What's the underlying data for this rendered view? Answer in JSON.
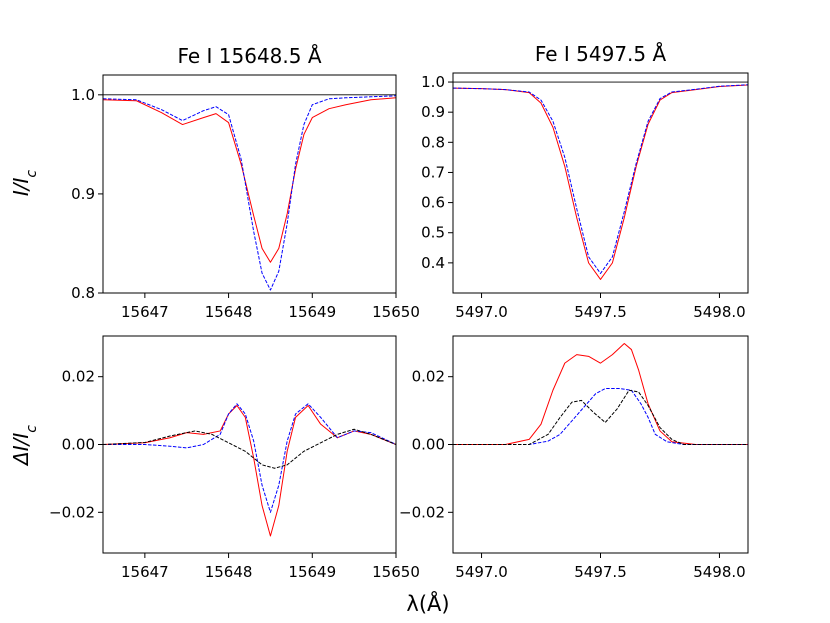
{
  "figure": {
    "ylabel_top": "I/I",
    "ylabel_top_sub": "c",
    "ylabel_bottom": "ΔI/I",
    "ylabel_bottom_sub": "c",
    "xlabel": "λ(Å)"
  },
  "chart_data": [
    {
      "id": "top-left",
      "type": "line",
      "title": "Fe I 15648.5 Å",
      "xlim": [
        15646.5,
        15650.0
      ],
      "ylim": [
        0.8,
        1.02
      ],
      "xticks": [
        15647,
        15648,
        15649,
        15650
      ],
      "xtick_labels": [
        "15647",
        "15648",
        "15649",
        "15650"
      ],
      "yticks": [
        0.8,
        0.9,
        1.0
      ],
      "ytick_labels": [
        "0.8",
        "0.9",
        "1.0"
      ],
      "hline": 1.0,
      "series": [
        {
          "color": "#ff0000",
          "dash": "solid",
          "x": [
            15646.5,
            15646.9,
            15647.2,
            15647.45,
            15647.7,
            15647.85,
            15648.0,
            15648.15,
            15648.3,
            15648.4,
            15648.5,
            15648.6,
            15648.7,
            15648.8,
            15648.9,
            15649.0,
            15649.2,
            15649.4,
            15649.7,
            15650.0
          ],
          "y": [
            0.995,
            0.994,
            0.982,
            0.97,
            0.977,
            0.981,
            0.972,
            0.93,
            0.878,
            0.845,
            0.831,
            0.845,
            0.88,
            0.925,
            0.96,
            0.977,
            0.986,
            0.99,
            0.995,
            0.997
          ]
        },
        {
          "color": "#0000ff",
          "dash": "dashed",
          "x": [
            15646.5,
            15646.9,
            15647.2,
            15647.45,
            15647.7,
            15647.85,
            15648.0,
            15648.15,
            15648.3,
            15648.4,
            15648.5,
            15648.6,
            15648.7,
            15648.8,
            15648.9,
            15649.0,
            15649.2,
            15649.4,
            15649.7,
            15650.0
          ],
          "y": [
            0.996,
            0.995,
            0.985,
            0.974,
            0.984,
            0.988,
            0.98,
            0.935,
            0.862,
            0.82,
            0.803,
            0.822,
            0.87,
            0.93,
            0.97,
            0.99,
            0.996,
            0.997,
            0.998,
            0.999
          ]
        }
      ]
    },
    {
      "id": "top-right",
      "type": "line",
      "title": "Fe I 5497.5 Å",
      "xlim": [
        5496.88,
        5498.12
      ],
      "ylim": [
        0.3,
        1.03
      ],
      "xticks": [
        5497.0,
        5497.5,
        5498.0
      ],
      "xtick_labels": [
        "5497.0",
        "5497.5",
        "5498.0"
      ],
      "yticks": [
        0.4,
        0.5,
        0.6,
        0.7,
        0.8,
        0.9,
        1.0
      ],
      "ytick_labels": [
        "0.4",
        "0.5",
        "0.6",
        "0.7",
        "0.8",
        "0.9",
        "1.0"
      ],
      "hline": 1.0,
      "series": [
        {
          "color": "#ff0000",
          "dash": "solid",
          "x": [
            5496.88,
            5497.0,
            5497.1,
            5497.2,
            5497.25,
            5497.3,
            5497.35,
            5497.4,
            5497.45,
            5497.5,
            5497.55,
            5497.6,
            5497.65,
            5497.7,
            5497.75,
            5497.8,
            5497.9,
            5498.0,
            5498.12
          ],
          "y": [
            0.98,
            0.978,
            0.975,
            0.965,
            0.93,
            0.85,
            0.72,
            0.55,
            0.4,
            0.345,
            0.4,
            0.55,
            0.72,
            0.86,
            0.94,
            0.965,
            0.975,
            0.985,
            0.99
          ]
        },
        {
          "color": "#0000ff",
          "dash": "dashed",
          "x": [
            5496.88,
            5497.0,
            5497.1,
            5497.2,
            5497.25,
            5497.3,
            5497.35,
            5497.4,
            5497.45,
            5497.5,
            5497.55,
            5497.6,
            5497.65,
            5497.7,
            5497.75,
            5497.8,
            5497.9,
            5498.0,
            5498.12
          ],
          "y": [
            0.98,
            0.978,
            0.975,
            0.967,
            0.94,
            0.87,
            0.75,
            0.58,
            0.42,
            0.365,
            0.42,
            0.57,
            0.73,
            0.87,
            0.945,
            0.967,
            0.976,
            0.986,
            0.991
          ]
        }
      ]
    },
    {
      "id": "bottom-left",
      "type": "line",
      "title": "",
      "xlim": [
        15646.5,
        15650.0
      ],
      "ylim": [
        -0.032,
        0.032
      ],
      "xticks": [
        15647,
        15648,
        15649,
        15650
      ],
      "xtick_labels": [
        "15647",
        "15648",
        "15649",
        "15650"
      ],
      "yticks": [
        -0.02,
        0.0,
        0.02
      ],
      "ytick_labels": [
        "−0.02",
        "0.00",
        "0.02"
      ],
      "series": [
        {
          "color": "#ff0000",
          "dash": "solid",
          "x": [
            15646.5,
            15647.0,
            15647.3,
            15647.5,
            15647.7,
            15647.9,
            15648.0,
            15648.1,
            15648.2,
            15648.3,
            15648.4,
            15648.5,
            15648.6,
            15648.7,
            15648.8,
            15648.95,
            15649.1,
            15649.3,
            15649.5,
            15649.7,
            15650.0
          ],
          "y": [
            0.0,
            0.0005,
            0.002,
            0.0035,
            0.003,
            0.004,
            0.009,
            0.0115,
            0.008,
            -0.004,
            -0.018,
            -0.027,
            -0.018,
            -0.002,
            0.008,
            0.0115,
            0.006,
            0.002,
            0.004,
            0.003,
            0.0
          ]
        },
        {
          "color": "#0000ff",
          "dash": "dashed",
          "x": [
            15646.5,
            15647.0,
            15647.3,
            15647.5,
            15647.7,
            15647.9,
            15648.0,
            15648.1,
            15648.2,
            15648.3,
            15648.4,
            15648.5,
            15648.6,
            15648.7,
            15648.8,
            15648.95,
            15649.1,
            15649.3,
            15649.5,
            15649.7,
            15650.0
          ],
          "y": [
            0.0,
            0.0,
            -0.0005,
            -0.001,
            0.0,
            0.003,
            0.009,
            0.012,
            0.009,
            0.001,
            -0.012,
            -0.02,
            -0.012,
            0.001,
            0.009,
            0.012,
            0.008,
            0.002,
            0.004,
            0.0035,
            0.0
          ]
        },
        {
          "color": "#000000",
          "dash": "dashed",
          "x": [
            15646.5,
            15647.0,
            15647.3,
            15647.6,
            15647.8,
            15648.0,
            15648.2,
            15648.4,
            15648.55,
            15648.7,
            15648.9,
            15649.1,
            15649.3,
            15649.5,
            15649.7,
            15650.0
          ],
          "y": [
            0.0,
            0.0006,
            0.0025,
            0.004,
            0.003,
            0.0005,
            -0.002,
            -0.006,
            -0.007,
            -0.006,
            -0.002,
            0.0005,
            0.003,
            0.0045,
            0.003,
            0.0
          ]
        }
      ]
    },
    {
      "id": "bottom-right",
      "type": "line",
      "title": "",
      "xlim": [
        5496.88,
        5498.12
      ],
      "ylim": [
        -0.032,
        0.032
      ],
      "xticks": [
        5497.0,
        5497.5,
        5498.0
      ],
      "xtick_labels": [
        "5497.0",
        "5497.5",
        "5498.0"
      ],
      "yticks": [
        -0.02,
        0.0,
        0.02
      ],
      "ytick_labels": [
        "−0.02",
        "0.00",
        "0.02"
      ],
      "series": [
        {
          "color": "#ff0000",
          "dash": "solid",
          "x": [
            5496.88,
            5497.1,
            5497.2,
            5497.25,
            5497.3,
            5497.35,
            5497.4,
            5497.45,
            5497.5,
            5497.55,
            5497.6,
            5497.63,
            5497.66,
            5497.7,
            5497.75,
            5497.8,
            5497.9,
            5498.12
          ],
          "y": [
            0.0,
            0.0,
            0.0015,
            0.006,
            0.016,
            0.024,
            0.0265,
            0.026,
            0.024,
            0.0265,
            0.0298,
            0.028,
            0.022,
            0.012,
            0.004,
            0.0008,
            0.0,
            0.0
          ]
        },
        {
          "color": "#0000ff",
          "dash": "dashed",
          "x": [
            5496.88,
            5497.2,
            5497.28,
            5497.33,
            5497.38,
            5497.43,
            5497.48,
            5497.52,
            5497.58,
            5497.63,
            5497.67,
            5497.7,
            5497.73,
            5497.78,
            5497.85,
            5498.12
          ],
          "y": [
            0.0,
            0.0,
            0.001,
            0.003,
            0.007,
            0.011,
            0.015,
            0.0165,
            0.0165,
            0.016,
            0.012,
            0.008,
            0.003,
            0.0008,
            0.0,
            0.0
          ]
        },
        {
          "color": "#000000",
          "dash": "dashed",
          "x": [
            5496.88,
            5497.2,
            5497.28,
            5497.33,
            5497.38,
            5497.42,
            5497.47,
            5497.52,
            5497.57,
            5497.62,
            5497.66,
            5497.7,
            5497.75,
            5497.8,
            5497.85,
            5498.12
          ],
          "y": [
            0.0,
            0.0,
            0.003,
            0.008,
            0.0125,
            0.013,
            0.0095,
            0.0065,
            0.0105,
            0.016,
            0.0155,
            0.0115,
            0.005,
            0.0015,
            0.0,
            0.0
          ]
        }
      ]
    }
  ]
}
